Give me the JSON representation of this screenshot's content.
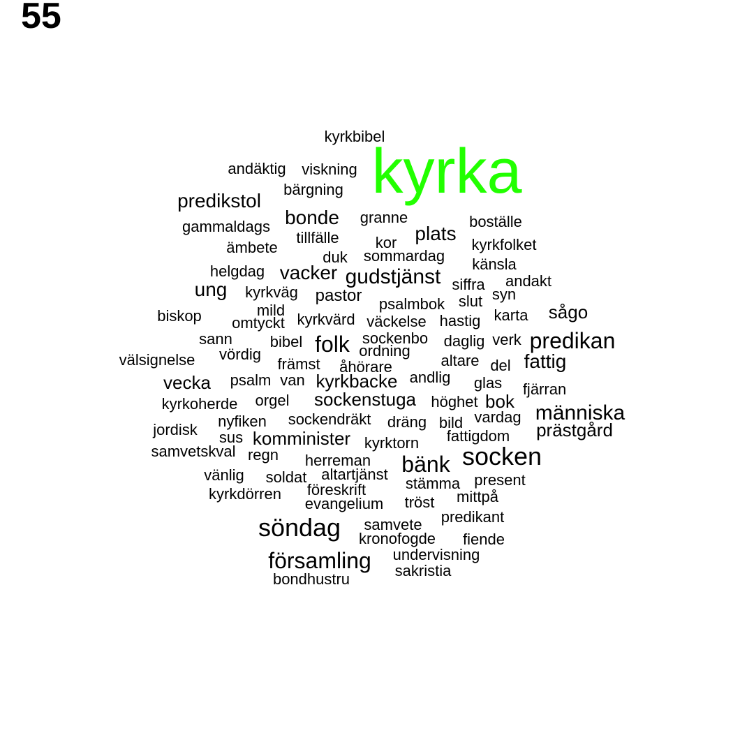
{
  "page_number": "55",
  "highlight_color": "#22ff00",
  "text_color": "#000000",
  "words": [
    {
      "text": "kyrkbibel",
      "highlight": false
    },
    {
      "text": "kyrka",
      "highlight": true
    },
    {
      "text": "andäktig",
      "highlight": false
    },
    {
      "text": "viskning",
      "highlight": false
    },
    {
      "text": "bärgning",
      "highlight": false
    },
    {
      "text": "predikstol",
      "highlight": false
    },
    {
      "text": "bonde",
      "highlight": false
    },
    {
      "text": "granne",
      "highlight": false
    },
    {
      "text": "boställe",
      "highlight": false
    },
    {
      "text": "gammaldags",
      "highlight": false
    },
    {
      "text": "tillfälle",
      "highlight": false
    },
    {
      "text": "plats",
      "highlight": false
    },
    {
      "text": "kor",
      "highlight": false
    },
    {
      "text": "kyrkfolket",
      "highlight": false
    },
    {
      "text": "ämbete",
      "highlight": false
    },
    {
      "text": "duk",
      "highlight": false
    },
    {
      "text": "sommardag",
      "highlight": false
    },
    {
      "text": "känsla",
      "highlight": false
    },
    {
      "text": "helgdag",
      "highlight": false
    },
    {
      "text": "vacker",
      "highlight": false
    },
    {
      "text": "gudstjänst",
      "highlight": false
    },
    {
      "text": "andakt",
      "highlight": false
    },
    {
      "text": "siffra",
      "highlight": false
    },
    {
      "text": "ung",
      "highlight": false
    },
    {
      "text": "kyrkväg",
      "highlight": false
    },
    {
      "text": "pastor",
      "highlight": false
    },
    {
      "text": "syn",
      "highlight": false
    },
    {
      "text": "slut",
      "highlight": false
    },
    {
      "text": "psalmbok",
      "highlight": false
    },
    {
      "text": "mild",
      "highlight": false
    },
    {
      "text": "biskop",
      "highlight": false
    },
    {
      "text": "omtyckt",
      "highlight": false
    },
    {
      "text": "kyrkvärd",
      "highlight": false
    },
    {
      "text": "väckelse",
      "highlight": false
    },
    {
      "text": "hastig",
      "highlight": false
    },
    {
      "text": "karta",
      "highlight": false
    },
    {
      "text": "sågo",
      "highlight": false
    },
    {
      "text": "sann",
      "highlight": false
    },
    {
      "text": "bibel",
      "highlight": false
    },
    {
      "text": "folk",
      "highlight": false
    },
    {
      "text": "sockenbo",
      "highlight": false
    },
    {
      "text": "daglig",
      "highlight": false
    },
    {
      "text": "verk",
      "highlight": false
    },
    {
      "text": "predikan",
      "highlight": false
    },
    {
      "text": "vördig",
      "highlight": false
    },
    {
      "text": "ordning",
      "highlight": false
    },
    {
      "text": "välsignelse",
      "highlight": false
    },
    {
      "text": "främst",
      "highlight": false
    },
    {
      "text": "åhörare",
      "highlight": false
    },
    {
      "text": "altare",
      "highlight": false
    },
    {
      "text": "del",
      "highlight": false
    },
    {
      "text": "fattig",
      "highlight": false
    },
    {
      "text": "vecka",
      "highlight": false
    },
    {
      "text": "psalm",
      "highlight": false
    },
    {
      "text": "van",
      "highlight": false
    },
    {
      "text": "kyrkbacke",
      "highlight": false
    },
    {
      "text": "andlig",
      "highlight": false
    },
    {
      "text": "glas",
      "highlight": false
    },
    {
      "text": "fjärran",
      "highlight": false
    },
    {
      "text": "kyrkoherde",
      "highlight": false
    },
    {
      "text": "orgel",
      "highlight": false
    },
    {
      "text": "sockenstuga",
      "highlight": false
    },
    {
      "text": "höghet",
      "highlight": false
    },
    {
      "text": "bok",
      "highlight": false
    },
    {
      "text": "människa",
      "highlight": false
    },
    {
      "text": "jordisk",
      "highlight": false
    },
    {
      "text": "nyfiken",
      "highlight": false
    },
    {
      "text": "sockendräkt",
      "highlight": false
    },
    {
      "text": "dräng",
      "highlight": false
    },
    {
      "text": "bild",
      "highlight": false
    },
    {
      "text": "vardag",
      "highlight": false
    },
    {
      "text": "prästgård",
      "highlight": false
    },
    {
      "text": "sus",
      "highlight": false
    },
    {
      "text": "komminister",
      "highlight": false
    },
    {
      "text": "fattigdom",
      "highlight": false
    },
    {
      "text": "kyrktorn",
      "highlight": false
    },
    {
      "text": "samvetskval",
      "highlight": false
    },
    {
      "text": "regn",
      "highlight": false
    },
    {
      "text": "herreman",
      "highlight": false
    },
    {
      "text": "bänk",
      "highlight": false
    },
    {
      "text": "socken",
      "highlight": false
    },
    {
      "text": "vänlig",
      "highlight": false
    },
    {
      "text": "soldat",
      "highlight": false
    },
    {
      "text": "altartjänst",
      "highlight": false
    },
    {
      "text": "stämma",
      "highlight": false
    },
    {
      "text": "present",
      "highlight": false
    },
    {
      "text": "kyrkdörren",
      "highlight": false
    },
    {
      "text": "föreskrift",
      "highlight": false
    },
    {
      "text": "mittpå",
      "highlight": false
    },
    {
      "text": "evangelium",
      "highlight": false
    },
    {
      "text": "tröst",
      "highlight": false
    },
    {
      "text": "predikant",
      "highlight": false
    },
    {
      "text": "söndag",
      "highlight": false
    },
    {
      "text": "samvete",
      "highlight": false
    },
    {
      "text": "kronofogde",
      "highlight": false
    },
    {
      "text": "fiende",
      "highlight": false
    },
    {
      "text": "undervisning",
      "highlight": false
    },
    {
      "text": "församling",
      "highlight": false
    },
    {
      "text": "sakristia",
      "highlight": false
    },
    {
      "text": "bondhustru",
      "highlight": false
    }
  ]
}
